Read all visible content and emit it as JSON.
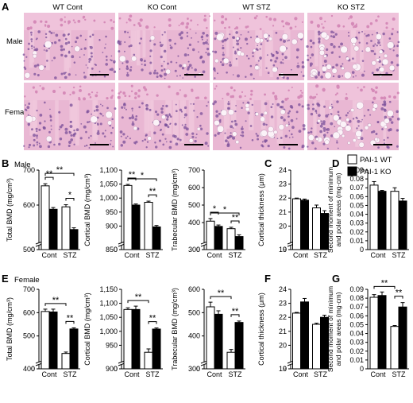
{
  "panel_letters": [
    "A",
    "B",
    "C",
    "D",
    "E",
    "F",
    "G"
  ],
  "histology": {
    "columns": [
      "WT Cont",
      "KO Cont",
      "WT STZ",
      "KO STZ"
    ],
    "rows": [
      "Male",
      "Female"
    ],
    "colors": {
      "tissue": "#d58ab8",
      "bone": "#f0c6dc",
      "cells": "#7a4f9a",
      "bg": "#e9b7d3"
    }
  },
  "legend": {
    "items": [
      {
        "name": "PAI-1 WT",
        "fill": "#ffffff"
      },
      {
        "name": "PAI-1 KO",
        "fill": "#000000"
      }
    ],
    "placement": "top-right"
  },
  "row_labels": {
    "B": "Male",
    "E": "Female"
  },
  "chart_data": [
    {
      "panel": "B",
      "type": "bar",
      "ylabel": "Total BMD (mg/cm³)",
      "categories": [
        "Cont",
        "STZ"
      ],
      "ylim": [
        0,
        700
      ],
      "yticks": [
        0,
        500,
        600,
        700
      ],
      "axis_break": true,
      "series": [
        {
          "name": "PAI-1 WT",
          "values": [
            655,
            595
          ],
          "errors": [
            6,
            6
          ]
        },
        {
          "name": "PAI-1 KO",
          "values": [
            588,
            530
          ],
          "errors": [
            5,
            5
          ]
        }
      ],
      "significance": [
        {
          "label": "**",
          "between": [
            [
              0,
              0
            ],
            [
              0,
              1
            ]
          ]
        },
        {
          "label": "**",
          "between": [
            [
              0,
              0
            ],
            [
              1,
              1
            ]
          ]
        },
        {
          "label": "*",
          "between": [
            [
              1,
              0
            ],
            [
              1,
              1
            ]
          ]
        }
      ]
    },
    {
      "panel": "B",
      "type": "bar",
      "ylabel": "Cortical BMD (mg/cm³)",
      "categories": [
        "Cont",
        "STZ"
      ],
      "ylim": [
        0,
        1100
      ],
      "yticks": [
        0,
        850,
        900,
        950,
        1000,
        1050,
        1100
      ],
      "ytick_labels": [
        "0",
        "850",
        "900",
        "950",
        "1,000",
        "1,050",
        "1,100"
      ],
      "axis_break": true,
      "series": [
        {
          "name": "PAI-1 WT",
          "values": [
            1045,
            985
          ],
          "errors": [
            4,
            4
          ]
        },
        {
          "name": "PAI-1 KO",
          "values": [
            975,
            897
          ],
          "errors": [
            4,
            5
          ]
        }
      ],
      "significance": [
        {
          "label": "*",
          "between": [
            [
              0,
              0
            ],
            [
              1,
              1
            ]
          ]
        },
        {
          "label": "**",
          "between": [
            [
              0,
              0
            ],
            [
              0,
              1
            ]
          ]
        },
        {
          "label": "**",
          "between": [
            [
              1,
              0
            ],
            [
              1,
              1
            ]
          ]
        }
      ]
    },
    {
      "panel": "B",
      "type": "bar",
      "ylabel": "Trabecular BMD (mg/cm³)",
      "categories": [
        "Cont",
        "STZ"
      ],
      "ylim": [
        0,
        700
      ],
      "yticks": [
        0,
        300,
        400,
        500,
        600,
        700
      ],
      "axis_break": true,
      "series": [
        {
          "name": "PAI-1 WT",
          "values": [
            408,
            365
          ],
          "errors": [
            15,
            8
          ]
        },
        {
          "name": "PAI-1 KO",
          "values": [
            378,
            320
          ],
          "errors": [
            8,
            10
          ]
        }
      ],
      "significance": [
        {
          "label": "*",
          "between": [
            [
              0,
              0
            ],
            [
              1,
              1
            ]
          ]
        },
        {
          "label": "*",
          "between": [
            [
              0,
              0
            ],
            [
              0,
              1
            ]
          ]
        },
        {
          "label": "**",
          "between": [
            [
              1,
              0
            ],
            [
              1,
              1
            ]
          ]
        }
      ]
    },
    {
      "panel": "C",
      "type": "bar",
      "ylabel": "Cortical thickness (μm)",
      "categories": [
        "Cont",
        "STZ"
      ],
      "ylim": [
        0,
        24
      ],
      "yticks": [
        0,
        19,
        20,
        21,
        22,
        23,
        24
      ],
      "axis_break": true,
      "series": [
        {
          "name": "PAI-1 WT",
          "values": [
            21.95,
            21.3
          ],
          "errors": [
            0.05,
            0.2
          ]
        },
        {
          "name": "PAI-1 KO",
          "values": [
            21.85,
            20.9
          ],
          "errors": [
            0.08,
            0.2
          ]
        }
      ],
      "significance": []
    },
    {
      "panel": "D",
      "type": "bar",
      "ylabel": "Second moment of minimum and polar areas (mg·cm)",
      "categories": [
        "Cont",
        "STZ"
      ],
      "ylim": [
        0,
        0.09
      ],
      "yticks": [
        0,
        0.01,
        0.02,
        0.03,
        0.04,
        0.05,
        0.06,
        0.07,
        0.08,
        0.09
      ],
      "ytick_labels": [
        "0",
        "0.01",
        "0.02",
        "0.03",
        "0.04",
        "0.05",
        "0.06",
        "0.07",
        "0.08",
        "0.09"
      ],
      "axis_break": false,
      "series": [
        {
          "name": "PAI-1 WT",
          "values": [
            0.073,
            0.066
          ],
          "errors": [
            0.004,
            0.004
          ]
        },
        {
          "name": "PAI-1 KO",
          "values": [
            0.066,
            0.055
          ],
          "errors": [
            0.001,
            0.003
          ]
        }
      ],
      "significance": []
    },
    {
      "panel": "E",
      "type": "bar",
      "ylabel": "Total BMD (mg/cm³)",
      "categories": [
        "Cont",
        "STZ"
      ],
      "ylim": [
        0,
        700
      ],
      "yticks": [
        0,
        400,
        500,
        600,
        700
      ],
      "axis_break": true,
      "series": [
        {
          "name": "PAI-1 WT",
          "values": [
            605,
            425
          ],
          "errors": [
            10,
            6
          ]
        },
        {
          "name": "PAI-1 KO",
          "values": [
            603,
            530
          ],
          "errors": [
            12,
            5
          ]
        }
      ],
      "significance": [
        {
          "label": "**",
          "between": [
            [
              0,
              0
            ],
            [
              1,
              0
            ]
          ]
        },
        {
          "label": "**",
          "between": [
            [
              1,
              0
            ],
            [
              1,
              1
            ]
          ]
        }
      ]
    },
    {
      "panel": "E",
      "type": "bar",
      "ylabel": "Cortical BMD (mg/cm³)",
      "categories": [
        "Cont",
        "STZ"
      ],
      "ylim": [
        0,
        1150
      ],
      "yticks": [
        0,
        900,
        950,
        1000,
        1050,
        1100,
        1150
      ],
      "ytick_labels": [
        "0",
        "900",
        "950",
        "1,000",
        "1,050",
        "1,100",
        "1,150"
      ],
      "axis_break": true,
      "series": [
        {
          "name": "PAI-1 WT",
          "values": [
            1078,
            925
          ],
          "errors": [
            6,
            12
          ]
        },
        {
          "name": "PAI-1 KO",
          "values": [
            1078,
            1008
          ],
          "errors": [
            12,
            4
          ]
        }
      ],
      "significance": [
        {
          "label": "**",
          "between": [
            [
              0,
              0
            ],
            [
              1,
              0
            ]
          ]
        },
        {
          "label": "**",
          "between": [
            [
              1,
              0
            ],
            [
              1,
              1
            ]
          ]
        }
      ]
    },
    {
      "panel": "E",
      "type": "bar",
      "ylabel": "Trabecular BMD (mg/cm³)",
      "categories": [
        "Cont",
        "STZ"
      ],
      "ylim": [
        0,
        600
      ],
      "yticks": [
        0,
        300,
        400,
        500,
        600
      ],
      "axis_break": true,
      "series": [
        {
          "name": "PAI-1 WT",
          "values": [
            525,
            330
          ],
          "errors": [
            20,
            12
          ]
        },
        {
          "name": "PAI-1 KO",
          "values": [
            493,
            458
          ],
          "errors": [
            15,
            6
          ]
        }
      ],
      "significance": [
        {
          "label": "**",
          "between": [
            [
              0,
              0
            ],
            [
              1,
              0
            ]
          ]
        },
        {
          "label": "**",
          "between": [
            [
              1,
              0
            ],
            [
              1,
              1
            ]
          ]
        }
      ]
    },
    {
      "panel": "F",
      "type": "bar",
      "ylabel": "Cortical thickness (μm)",
      "categories": [
        "Cont",
        "STZ"
      ],
      "ylim": [
        0,
        24
      ],
      "yticks": [
        0,
        19,
        20,
        21,
        22,
        23,
        24
      ],
      "axis_break": true,
      "series": [
        {
          "name": "PAI-1 WT",
          "values": [
            22.3,
            21.5
          ],
          "errors": [
            0.05,
            0.08
          ]
        },
        {
          "name": "PAI-1 KO",
          "values": [
            23.1,
            22.0
          ],
          "errors": [
            0.25,
            0.15
          ]
        }
      ],
      "significance": []
    },
    {
      "panel": "G",
      "type": "bar",
      "ylabel": "Second moment of minimum and polar areas (mg·cm)",
      "categories": [
        "Cont",
        "STZ"
      ],
      "ylim": [
        0,
        0.09
      ],
      "yticks": [
        0,
        0.01,
        0.02,
        0.03,
        0.04,
        0.05,
        0.06,
        0.07,
        0.08,
        0.09
      ],
      "ytick_labels": [
        "0",
        "0.01",
        "0.02",
        "0.03",
        "0.04",
        "0.05",
        "0.06",
        "0.07",
        "0.08",
        "0.09"
      ],
      "axis_break": false,
      "series": [
        {
          "name": "PAI-1 WT",
          "values": [
            0.081,
            0.048
          ],
          "errors": [
            0.003,
            0.001
          ]
        },
        {
          "name": "PAI-1 KO",
          "values": [
            0.083,
            0.07
          ],
          "errors": [
            0.004,
            0.005
          ]
        }
      ],
      "significance": [
        {
          "label": "**",
          "between": [
            [
              0,
              0
            ],
            [
              1,
              0
            ]
          ]
        },
        {
          "label": "**",
          "between": [
            [
              1,
              0
            ],
            [
              1,
              1
            ]
          ]
        }
      ]
    }
  ]
}
